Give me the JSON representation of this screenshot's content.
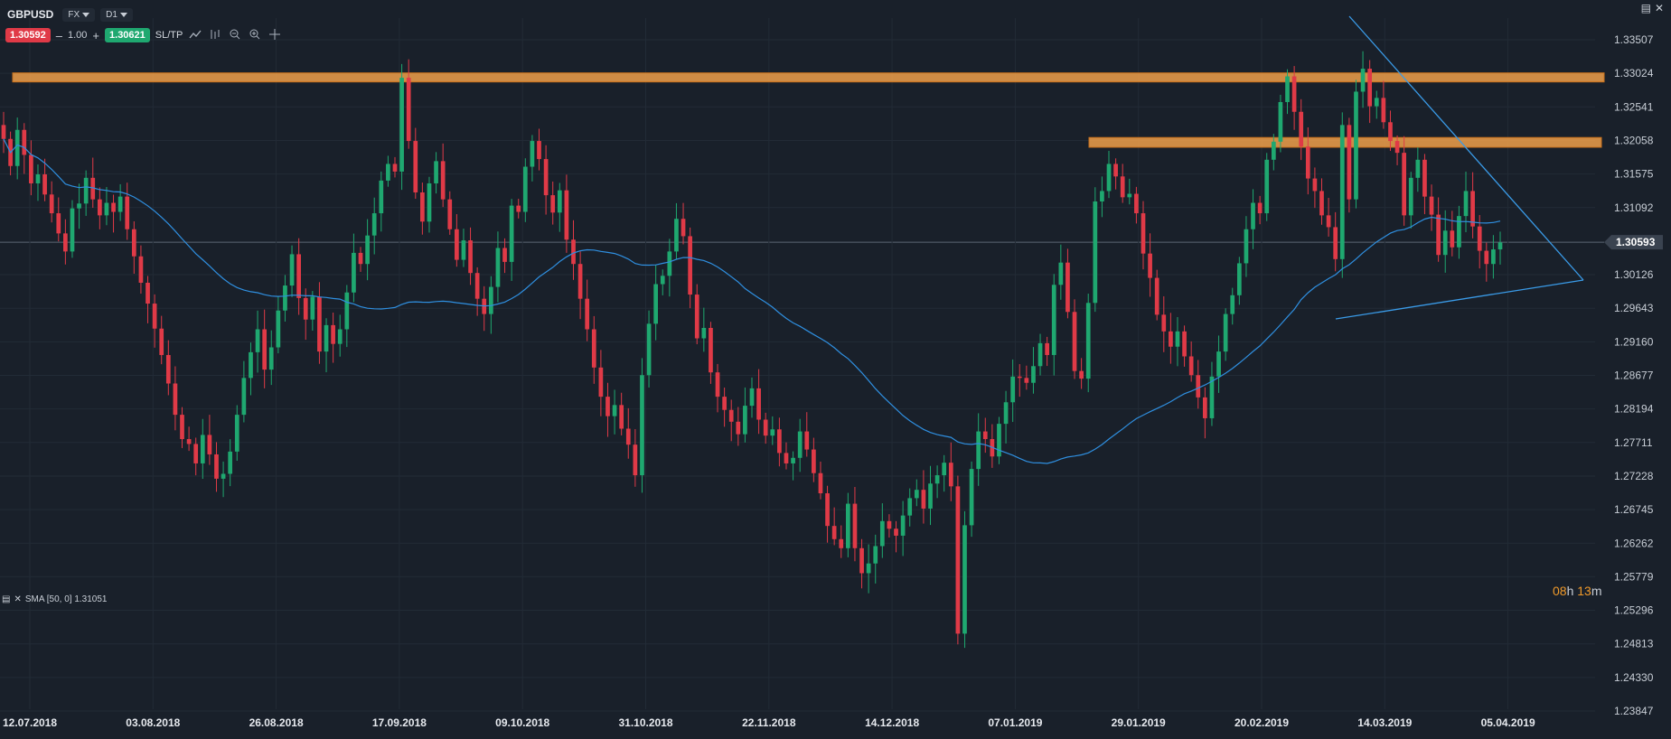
{
  "header": {
    "symbol": "GBPUSD",
    "market_dropdown": "FX",
    "timeframe_dropdown": "D1"
  },
  "trade_bar": {
    "bid_price": "1.30592",
    "lot_minus": "–",
    "lot_value": "1.00",
    "lot_plus": "+",
    "ask_price": "1.30621",
    "sltp_label": "SL/TP"
  },
  "tool_icons": [
    "line-chart-icon",
    "bar-style-icon",
    "zoom-out-icon",
    "zoom-in-icon",
    "crosshair-icon"
  ],
  "window_controls": [
    "maximize-icon",
    "close-icon"
  ],
  "price_axis": {
    "ticks": [
      "1.33507",
      "1.33024",
      "1.32541",
      "1.32058",
      "1.31575",
      "1.31092",
      "1.30126",
      "1.29643",
      "1.29160",
      "1.28677",
      "1.28194",
      "1.27711",
      "1.27228",
      "1.26745",
      "1.26262",
      "1.25779",
      "1.25296",
      "1.24813",
      "1.24330",
      "1.23847"
    ],
    "current_price": "1.30593"
  },
  "date_axis": {
    "ticks": [
      "12.07.2018",
      "03.08.2018",
      "26.08.2018",
      "17.09.2018",
      "09.10.2018",
      "31.10.2018",
      "22.11.2018",
      "14.12.2018",
      "07.01.2019",
      "29.01.2019",
      "20.02.2019",
      "14.03.2019",
      "05.04.2019"
    ]
  },
  "indicator": {
    "label": "SMA [50, 0] 1.31051"
  },
  "countdown": {
    "hours": "08",
    "h_unit": "h",
    "minutes": "13",
    "m_unit": "m"
  },
  "colors": {
    "background": "#19202a",
    "bull": "#1fa870",
    "bear": "#e03a47",
    "sma": "#2f8fe0",
    "zone": "#f0a04a",
    "trendline": "#3a9be8",
    "grid": "#222b36"
  },
  "chart_data": {
    "type": "candlestick",
    "symbol": "GBPUSD",
    "timeframe": "D1",
    "y_ticks": [
      1.33507,
      1.33024,
      1.32541,
      1.32058,
      1.31575,
      1.31092,
      1.30126,
      1.29643,
      1.2916,
      1.28677,
      1.28194,
      1.27711,
      1.27228,
      1.26745,
      1.26262,
      1.25779,
      1.25296,
      1.24813,
      1.2433,
      1.23847
    ],
    "current_price": 1.30593,
    "ylim": [
      1.236,
      1.338
    ],
    "x_dates": [
      "12.07.2018",
      "03.08.2018",
      "26.08.2018",
      "17.09.2018",
      "09.10.2018",
      "31.10.2018",
      "22.11.2018",
      "14.12.2018",
      "07.01.2019",
      "29.01.2019",
      "20.02.2019",
      "14.03.2019",
      "05.04.2019"
    ],
    "sma_period": 50,
    "sma_value": 1.31051,
    "zones": [
      {
        "from": 1.329,
        "to": 1.3303
      },
      {
        "from": 1.3196,
        "to": 1.321
      }
    ],
    "closes": [
      1.3208,
      1.3169,
      1.3221,
      1.3185,
      1.3144,
      1.3157,
      1.3128,
      1.3101,
      1.3072,
      1.3046,
      1.3108,
      1.3115,
      1.3152,
      1.3121,
      1.3098,
      1.3116,
      1.3103,
      1.3125,
      1.3078,
      1.3039,
      1.3001,
      1.2971,
      1.2935,
      1.2897,
      1.2856,
      1.2811,
      1.2776,
      1.2769,
      1.2741,
      1.2782,
      1.2754,
      1.2719,
      1.2726,
      1.2758,
      1.2811,
      1.2864,
      1.2901,
      1.2934,
      1.2876,
      1.2908,
      1.2961,
      1.2997,
      1.3042,
      1.2979,
      1.2948,
      1.2981,
      1.2902,
      1.294,
      1.2913,
      1.2934,
      1.2987,
      1.3044,
      1.3028,
      1.3069,
      1.3101,
      1.3148,
      1.3172,
      1.3161,
      1.3296,
      1.3205,
      1.3131,
      1.3089,
      1.3144,
      1.3176,
      1.3121,
      1.3078,
      1.3034,
      1.3062,
      1.3015,
      1.2978,
      1.2956,
      1.2995,
      1.3051,
      1.3031,
      1.3112,
      1.3103,
      1.3168,
      1.3205,
      1.3179,
      1.3127,
      1.3102,
      1.3134,
      1.3063,
      1.3028,
      1.2978,
      1.2934,
      1.2879,
      1.2837,
      1.2809,
      1.2825,
      1.2791,
      1.2768,
      1.2724,
      1.2868,
      1.2942,
      1.2999,
      1.3011,
      1.3046,
      1.3093,
      1.3068,
      1.2984,
      1.2921,
      1.2936,
      1.2872,
      1.2837,
      1.2818,
      1.2801,
      1.2783,
      1.2824,
      1.2849,
      1.2804,
      1.2781,
      1.279,
      1.2756,
      1.2741,
      1.2749,
      1.2787,
      1.2761,
      1.2727,
      1.2698,
      1.2651,
      1.2632,
      1.2619,
      1.2683,
      1.2619,
      1.2583,
      1.2597,
      1.2622,
      1.2658,
      1.2647,
      1.2637,
      1.2666,
      1.2691,
      1.2703,
      1.2676,
      1.2712,
      1.2724,
      1.2742,
      1.2708,
      1.2496,
      1.2652,
      1.2733,
      1.2787,
      1.2776,
      1.2751,
      1.2798,
      1.2829,
      1.2866,
      1.2864,
      1.2857,
      1.2881,
      1.2914,
      1.2897,
      1.2998,
      1.303,
      1.2959,
      1.2874,
      1.2863,
      1.2972,
      1.3118,
      1.3133,
      1.3172,
      1.3154,
      1.3124,
      1.3129,
      1.3101,
      1.3043,
      1.3008,
      1.2955,
      1.2931,
      1.2909,
      1.2931,
      1.2895,
      1.2868,
      1.2836,
      1.2806,
      1.2866,
      1.2902,
      1.2956,
      1.2983,
      1.3029,
      1.3078,
      1.3116,
      1.3101,
      1.3178,
      1.3204,
      1.3261,
      1.3298,
      1.3247,
      1.3197,
      1.3151,
      1.3133,
      1.3098,
      1.3081,
      1.3035,
      1.3228,
      1.3121,
      1.3276,
      1.3309,
      1.3255,
      1.3267,
      1.3232,
      1.3205,
      1.3188,
      1.3098,
      1.3152,
      1.3178,
      1.3125,
      1.3099,
      1.3041,
      1.3076,
      1.3052,
      1.3097,
      1.3133,
      1.3082,
      1.3047,
      1.3028,
      1.3049,
      1.3059
    ]
  }
}
